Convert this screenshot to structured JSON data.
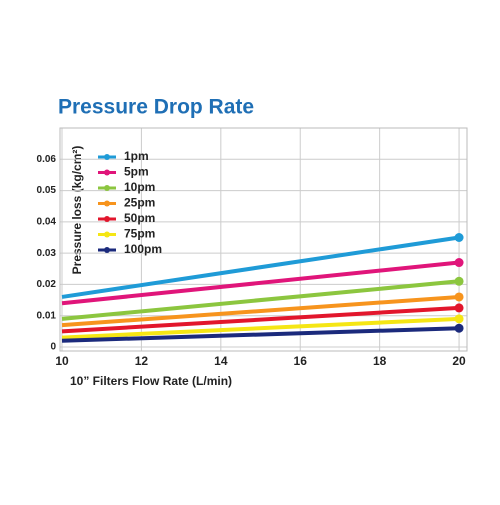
{
  "chart_data": {
    "type": "line",
    "title": "Pressure Drop Rate",
    "x_label": "10” Filters Flow Rate (L/min)",
    "y_label": "Pressure loss (kg/cm²)",
    "x": [
      10,
      20
    ],
    "series": [
      {
        "name": "1pm",
        "color": "#1f9bd7",
        "values": [
          0.016,
          0.035
        ]
      },
      {
        "name": "5pm",
        "color": "#e0157a",
        "values": [
          0.014,
          0.027
        ]
      },
      {
        "name": "10pm",
        "color": "#8cc63f",
        "values": [
          0.009,
          0.021
        ]
      },
      {
        "name": "25pm",
        "color": "#f7941d",
        "values": [
          0.007,
          0.016
        ]
      },
      {
        "name": "50pm",
        "color": "#e2162c",
        "values": [
          0.005,
          0.0125
        ]
      },
      {
        "name": "75pm",
        "color": "#f5e614",
        "values": [
          0.003,
          0.009
        ]
      },
      {
        "name": "100pm",
        "color": "#1b2a7c",
        "values": [
          0.002,
          0.006
        ]
      }
    ],
    "xlim": [
      10,
      20.2
    ],
    "xticks": [
      10,
      12,
      14,
      16,
      18,
      20
    ],
    "ylim": [
      0,
      0.07
    ],
    "yticks": [
      0,
      0.01,
      0.02,
      0.03,
      0.04,
      0.05,
      0.06
    ],
    "grid": true
  }
}
